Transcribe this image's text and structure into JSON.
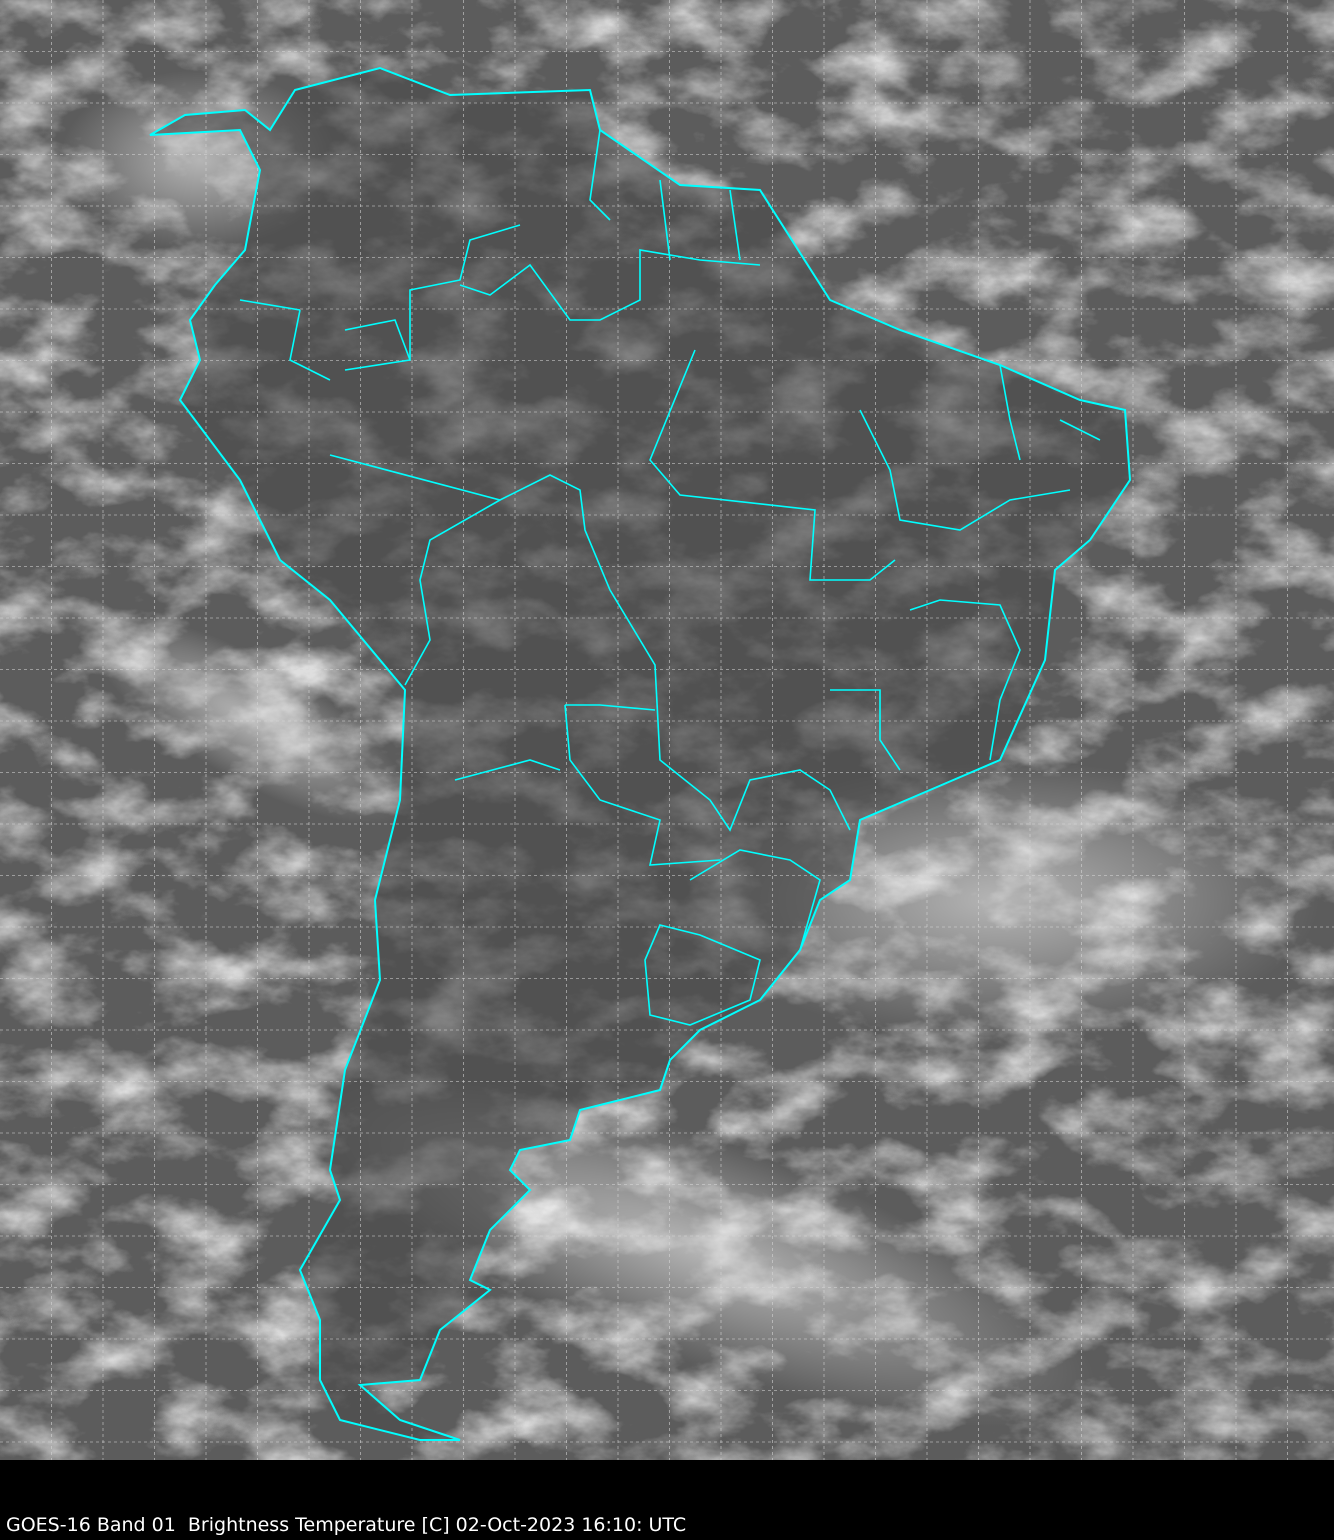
{
  "caption": "GOES-16 Band 01  Brightness Temperature [C] 02-Oct-2023 16:10: UTC",
  "colors": {
    "coastline": "#00ffff",
    "grid": "#d8d8d8",
    "background": "#000000",
    "ocean_gray": "#5a5a5a"
  }
}
